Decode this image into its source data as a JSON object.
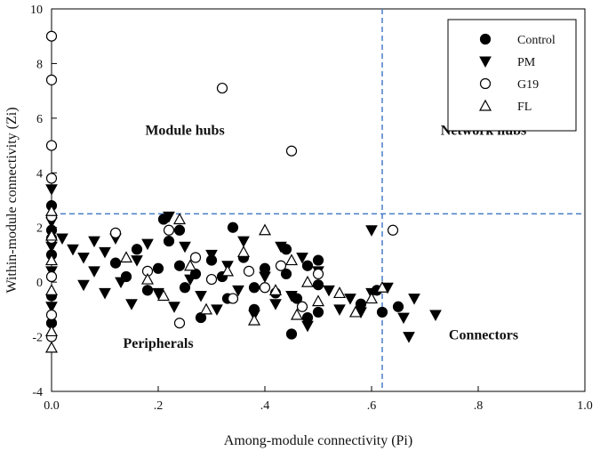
{
  "chart_data": {
    "type": "scatter",
    "xlabel": "Among-module connectivity (Pi)",
    "ylabel": "Within-module connectivity (Zi)",
    "xlim": [
      0.0,
      1.0
    ],
    "ylim": [
      -4,
      10
    ],
    "x_ticks": [
      0.0,
      0.2,
      0.4,
      0.6,
      0.8,
      1.0
    ],
    "x_tick_labels": [
      "0.0",
      ".2",
      ".4",
      ".6",
      ".8",
      "1.0"
    ],
    "y_ticks": [
      -4,
      -2,
      0,
      2,
      4,
      6,
      8,
      10
    ],
    "y_tick_labels": [
      "-4",
      "-2",
      "0",
      "2",
      "4",
      "6",
      "8",
      "10"
    ],
    "thresholds": {
      "pi": 0.62,
      "zi": 2.5,
      "color": "#4a7cc7"
    },
    "regions": [
      {
        "label": "Module hubs",
        "x": 0.25,
        "y": 5.4
      },
      {
        "label": "Network hubs",
        "x": 0.81,
        "y": 5.4
      },
      {
        "label": "Peripherals",
        "x": 0.2,
        "y": -2.4
      },
      {
        "label": "Connectors",
        "x": 0.81,
        "y": -2.1
      }
    ],
    "legend_position": "top-right",
    "series": [
      {
        "name": "Control",
        "marker": "filled-circle",
        "points": [
          [
            0.0,
            2.8
          ],
          [
            0.0,
            1.9
          ],
          [
            0.0,
            1.0
          ],
          [
            0.0,
            -0.5
          ],
          [
            0.0,
            -1.5
          ],
          [
            0.12,
            0.7
          ],
          [
            0.14,
            0.2
          ],
          [
            0.16,
            1.2
          ],
          [
            0.18,
            -0.3
          ],
          [
            0.2,
            0.5
          ],
          [
            0.21,
            2.3
          ],
          [
            0.22,
            1.5
          ],
          [
            0.24,
            1.9
          ],
          [
            0.24,
            0.6
          ],
          [
            0.25,
            -0.2
          ],
          [
            0.27,
            0.3
          ],
          [
            0.28,
            -1.3
          ],
          [
            0.3,
            0.8
          ],
          [
            0.32,
            0.2
          ],
          [
            0.33,
            -0.6
          ],
          [
            0.34,
            2.0
          ],
          [
            0.36,
            0.9
          ],
          [
            0.38,
            -0.2
          ],
          [
            0.38,
            -1.0
          ],
          [
            0.4,
            0.5
          ],
          [
            0.42,
            -0.4
          ],
          [
            0.44,
            1.2
          ],
          [
            0.44,
            0.3
          ],
          [
            0.45,
            -1.9
          ],
          [
            0.46,
            -0.6
          ],
          [
            0.48,
            0.6
          ],
          [
            0.48,
            -1.3
          ],
          [
            0.5,
            0.8
          ],
          [
            0.5,
            -0.1
          ],
          [
            0.5,
            -1.1
          ],
          [
            0.58,
            -0.8
          ],
          [
            0.61,
            -0.3
          ],
          [
            0.62,
            -1.1
          ],
          [
            0.65,
            -0.9
          ]
        ]
      },
      {
        "name": "PM",
        "marker": "filled-triangle-down",
        "points": [
          [
            0.0,
            3.4
          ],
          [
            0.0,
            2.2
          ],
          [
            0.0,
            1.3
          ],
          [
            0.0,
            0.4
          ],
          [
            0.0,
            -0.9
          ],
          [
            0.02,
            1.6
          ],
          [
            0.04,
            1.2
          ],
          [
            0.06,
            0.9
          ],
          [
            0.06,
            -0.1
          ],
          [
            0.08,
            1.5
          ],
          [
            0.08,
            0.4
          ],
          [
            0.1,
            1.1
          ],
          [
            0.1,
            -0.4
          ],
          [
            0.12,
            1.6
          ],
          [
            0.13,
            0.0
          ],
          [
            0.15,
            -0.8
          ],
          [
            0.16,
            0.8
          ],
          [
            0.18,
            1.4
          ],
          [
            0.2,
            -0.4
          ],
          [
            0.22,
            2.4
          ],
          [
            0.23,
            -0.9
          ],
          [
            0.25,
            1.3
          ],
          [
            0.26,
            0.1
          ],
          [
            0.28,
            -0.5
          ],
          [
            0.3,
            1.0
          ],
          [
            0.31,
            -1.0
          ],
          [
            0.33,
            0.6
          ],
          [
            0.35,
            -0.3
          ],
          [
            0.36,
            1.5
          ],
          [
            0.38,
            -1.2
          ],
          [
            0.4,
            0.2
          ],
          [
            0.42,
            -0.8
          ],
          [
            0.43,
            1.3
          ],
          [
            0.45,
            -0.5
          ],
          [
            0.47,
            0.9
          ],
          [
            0.48,
            -1.6
          ],
          [
            0.5,
            0.4
          ],
          [
            0.52,
            -0.3
          ],
          [
            0.54,
            -1.0
          ],
          [
            0.56,
            -0.6
          ],
          [
            0.58,
            -1.1
          ],
          [
            0.6,
            -0.4
          ],
          [
            0.6,
            1.9
          ],
          [
            0.63,
            -0.2
          ],
          [
            0.66,
            -1.3
          ],
          [
            0.67,
            -2.0
          ],
          [
            0.68,
            -0.6
          ],
          [
            0.72,
            -1.2
          ]
        ]
      },
      {
        "name": "G19",
        "marker": "open-circle",
        "points": [
          [
            0.0,
            9.0
          ],
          [
            0.0,
            7.4
          ],
          [
            0.0,
            5.0
          ],
          [
            0.0,
            3.8
          ],
          [
            0.0,
            2.4
          ],
          [
            0.0,
            1.6
          ],
          [
            0.0,
            0.2
          ],
          [
            0.0,
            -1.2
          ],
          [
            0.0,
            -2.0
          ],
          [
            0.12,
            1.8
          ],
          [
            0.18,
            0.4
          ],
          [
            0.22,
            1.9
          ],
          [
            0.24,
            -1.5
          ],
          [
            0.27,
            0.9
          ],
          [
            0.3,
            0.1
          ],
          [
            0.32,
            7.1
          ],
          [
            0.34,
            -0.6
          ],
          [
            0.37,
            0.4
          ],
          [
            0.4,
            -0.2
          ],
          [
            0.43,
            0.6
          ],
          [
            0.45,
            4.8
          ],
          [
            0.47,
            -0.9
          ],
          [
            0.5,
            0.3
          ],
          [
            0.64,
            1.9
          ]
        ]
      },
      {
        "name": "FL",
        "marker": "open-triangle-up",
        "points": [
          [
            0.0,
            2.6
          ],
          [
            0.0,
            1.7
          ],
          [
            0.0,
            0.8
          ],
          [
            0.0,
            -0.3
          ],
          [
            0.0,
            -1.8
          ],
          [
            0.0,
            -2.4
          ],
          [
            0.14,
            0.9
          ],
          [
            0.18,
            0.1
          ],
          [
            0.21,
            -0.5
          ],
          [
            0.24,
            2.3
          ],
          [
            0.26,
            0.6
          ],
          [
            0.29,
            -1.0
          ],
          [
            0.33,
            0.4
          ],
          [
            0.36,
            1.1
          ],
          [
            0.38,
            -1.4
          ],
          [
            0.4,
            1.9
          ],
          [
            0.42,
            -0.3
          ],
          [
            0.45,
            0.8
          ],
          [
            0.46,
            -1.2
          ],
          [
            0.48,
            0.0
          ],
          [
            0.5,
            -0.7
          ],
          [
            0.54,
            -0.4
          ],
          [
            0.57,
            -1.1
          ],
          [
            0.6,
            -0.6
          ],
          [
            0.62,
            -0.2
          ]
        ]
      }
    ]
  }
}
